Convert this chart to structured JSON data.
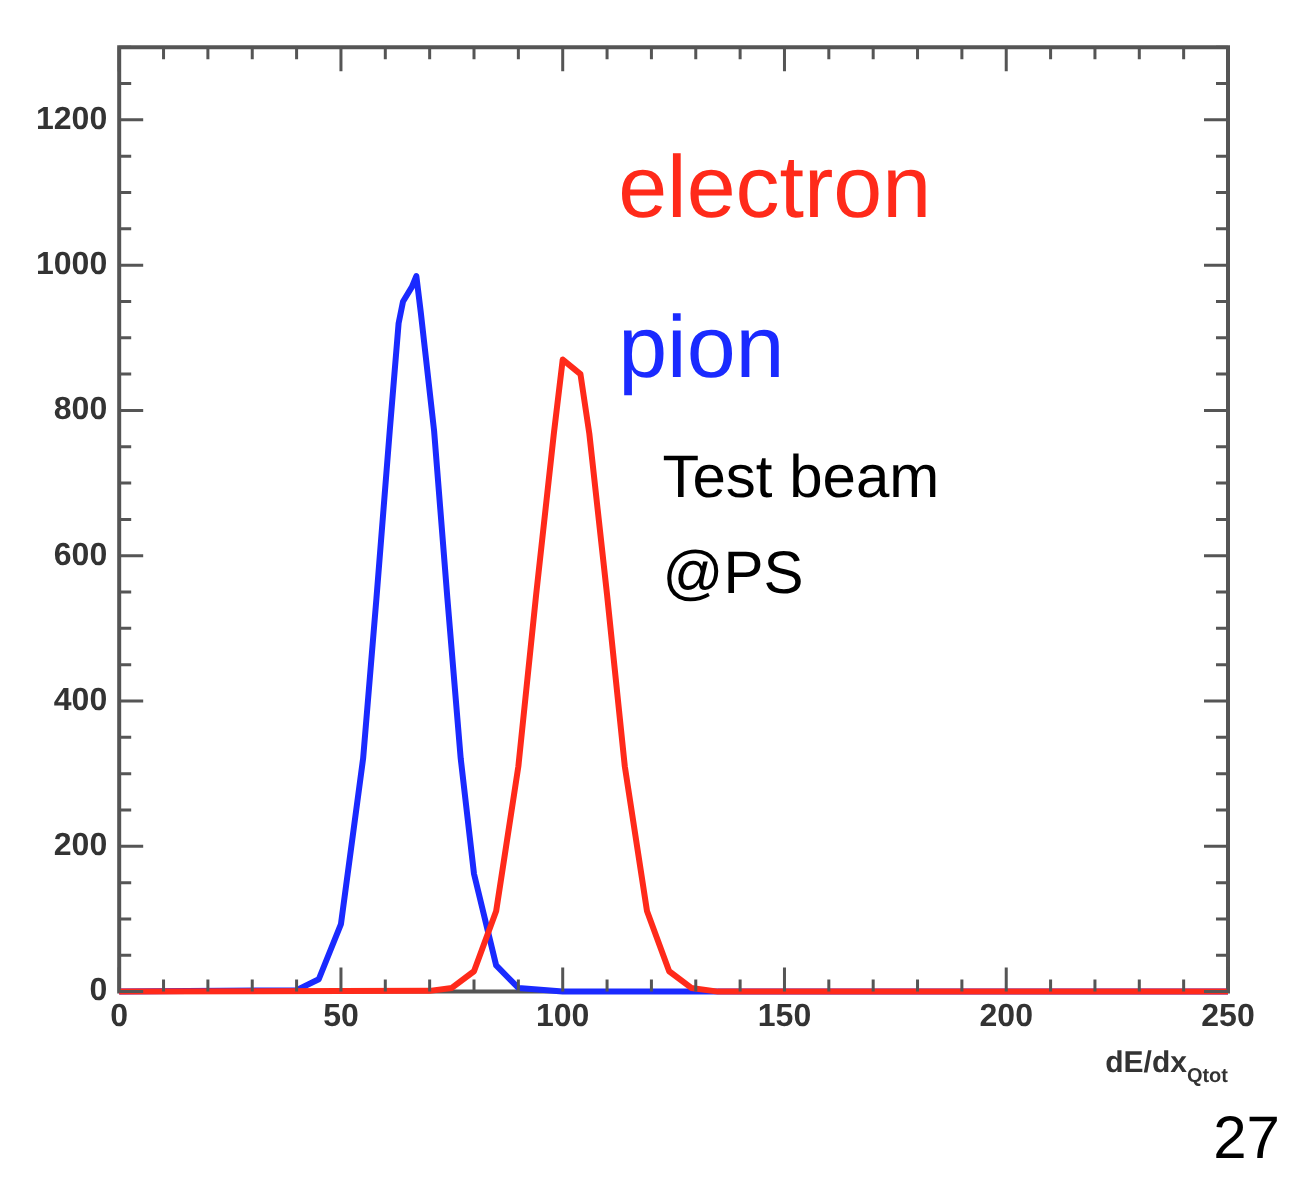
{
  "chart_data": {
    "type": "line",
    "xlabel": "dE/dx$_{Qtot}$",
    "xlim": [
      0,
      250
    ],
    "xticks": [
      0,
      50,
      100,
      150,
      200,
      250
    ],
    "ylim": [
      0,
      1300
    ],
    "yticks": [
      0,
      200,
      400,
      600,
      800,
      1000,
      1200
    ],
    "grid": false,
    "legend": "top right",
    "marker": "none",
    "line_style": "solid",
    "series": [
      {
        "name": "electron",
        "color": "#ff2a1a",
        "x": [
          0,
          70,
          75,
          80,
          85,
          90,
          94,
          98,
          100,
          102,
          104,
          106,
          110,
          114,
          119,
          124,
          129,
          135,
          250
        ],
        "values": [
          0,
          1,
          5,
          28,
          111,
          310,
          546,
          768,
          870,
          860,
          850,
          768,
          546,
          310,
          111,
          28,
          5,
          0,
          0
        ]
      },
      {
        "name": "pion",
        "color": "#1a2aff",
        "x": [
          0,
          40,
          45,
          50,
          55,
          58,
          61,
          63,
          64,
          66,
          67,
          68,
          71,
          74,
          77,
          80,
          85,
          90,
          100,
          250
        ],
        "values": [
          0,
          2,
          17,
          93,
          321,
          541,
          772,
          920,
          950,
          970,
          985,
          935,
          772,
          541,
          321,
          162,
          36,
          5,
          0,
          0
        ]
      }
    ],
    "annotations": [
      "Test beam\n@PS",
      "27"
    ]
  }
}
